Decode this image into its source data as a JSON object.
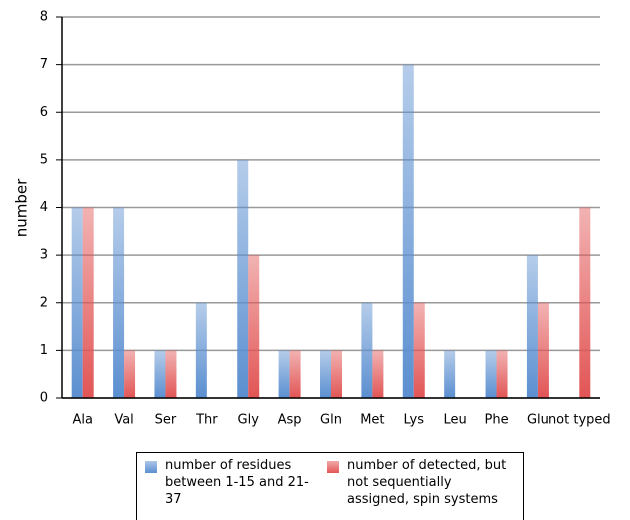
{
  "chart_data": {
    "type": "bar",
    "y_label": "number",
    "categories": [
      "Ala",
      "Val",
      "Ser",
      "Thr",
      "Gly",
      "Asp",
      "Gln",
      "Met",
      "Lys",
      "Leu",
      "Phe",
      "Glu",
      "not typed"
    ],
    "series": [
      {
        "name": "number of residues between 1-15 and 21-37",
        "color": "#5b8fd0",
        "values": [
          4,
          4,
          1,
          2,
          5,
          1,
          1,
          2,
          7,
          1,
          1,
          3,
          0
        ]
      },
      {
        "name": "number of detected, but not sequentially assigned, spin systems",
        "color": "#e25555",
        "values": [
          4,
          1,
          1,
          0,
          3,
          1,
          1,
          1,
          2,
          0,
          1,
          2,
          4
        ]
      }
    ],
    "ylim": [
      0,
      8
    ],
    "yticks": [
      0,
      1,
      2,
      3,
      4,
      5,
      6,
      7,
      8
    ],
    "grid": true
  }
}
